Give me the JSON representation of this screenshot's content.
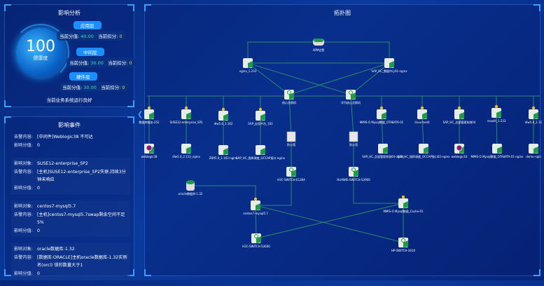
{
  "analysis": {
    "title": "影响分析",
    "health_value": "100",
    "health_label": "健康度",
    "layers": [
      {
        "name": "应用层",
        "score_label": "当前分值:",
        "score": "40.00",
        "deduct_label": "当前扣分:",
        "deduct": "0"
      },
      {
        "name": "中间层",
        "score_label": "当前分值:",
        "score": "30.00",
        "deduct_label": "当前扣分:",
        "deduct": "0"
      },
      {
        "name": "硬件层",
        "score_label": "当前分值:",
        "score": "30.00",
        "deduct_label": "当前扣分:",
        "deduct": "0"
      }
    ],
    "status": "当前业务系统运行良好"
  },
  "events": {
    "title": "影响事件",
    "items": [
      {
        "target_label": "",
        "target": "",
        "content_label": "告警内容:",
        "content": "[中间件]Weblogic38 不可达",
        "score_label": "影响分值:",
        "score": "0"
      },
      {
        "target_label": "影响对象:",
        "target": "SUSE12-enterprise_SP2",
        "content_label": "告警内容:",
        "content": "[主机]SUSE12-enterprise_SP2失联,持续3分钟未响应",
        "score_label": "影响分值:",
        "score": "0"
      },
      {
        "target_label": "影响对象:",
        "target": "centos7-mysql5.7",
        "content_label": "告警内容:",
        "content": "[主机]centos7-mysql5.7swap剩余空间不足5%",
        "score_label": "影响分值:",
        "score": "0"
      },
      {
        "target_label": "影响对象:",
        "target": "oracle数据库-1.32",
        "content_label": "告警内容:",
        "content": "[数据库:ORACLE]主机oracle数据库-1.32实例名(orcl) 锁的数量大于1",
        "score_label": "影响分值:",
        "score": "0"
      }
    ]
  },
  "collapse_icon": "chevron-left-icon",
  "topology": {
    "title": "拓扑图",
    "colors": {
      "link": "#2a8a6a",
      "node_green": "#1f9a4a",
      "warn": "#f0c020",
      "error": "#8a1a7a"
    },
    "nodes": [
      {
        "id": "apm",
        "label": "APM告警",
        "kind": "apm"
      },
      {
        "id": "ng233",
        "label": "nginx_1.233",
        "kind": "server"
      },
      {
        "id": "sap01",
        "label": "SAP_HC_数据中心01-nginx",
        "kind": "server"
      },
      {
        "id": "sw1",
        "label": "核心交换机",
        "kind": "switch"
      },
      {
        "id": "sw2",
        "label": "华为核心交换机",
        "kind": "switch"
      },
      {
        "id": "r1a",
        "label": "数据库服务-252",
        "kind": "server",
        "state": "warn"
      },
      {
        "id": "r1b",
        "label": "SUSE12-enterprise_SP2",
        "kind": "server",
        "state": "warn"
      },
      {
        "id": "r1c",
        "label": "dlw5.0_1.162",
        "kind": "server",
        "state": "warn"
      },
      {
        "id": "r1d",
        "label": "SAP_应用平台_161",
        "kind": "server",
        "state": "warn"
      },
      {
        "id": "r1e",
        "label": "MMIS-O Mysql数据_OTA8ATA-01",
        "kind": "server",
        "state": "warn"
      },
      {
        "id": "r1f",
        "label": "linux-test4",
        "kind": "server",
        "state": "warn"
      },
      {
        "id": "r1g",
        "label": "SAP_HC_总部管理系统04",
        "kind": "server",
        "state": "warn"
      },
      {
        "id": "r1h",
        "label": "nexolit_1.233",
        "kind": "server",
        "state": "warn"
      },
      {
        "id": "r1i",
        "label": "dlw5.0_2.11",
        "kind": "server",
        "state": "warn"
      },
      {
        "id": "r2a",
        "label": "weblogic38",
        "kind": "server",
        "state": "error"
      },
      {
        "id": "r2b",
        "label": "dlw5.0_2.113_nginx",
        "kind": "server"
      },
      {
        "id": "r2c",
        "label": "ZBX5.0_1.162-nginx",
        "kind": "server"
      },
      {
        "id": "r2d",
        "label": "SAP_HC_指挥调度_OCCAP接口-nginx",
        "kind": "server"
      },
      {
        "id": "r2e",
        "label": "SAP_HC_总部管理系统04-nginx",
        "kind": "server"
      },
      {
        "id": "r2f",
        "label": "SAP_HC_指挥调度_OCCAP接口02-nginx",
        "kind": "server"
      },
      {
        "id": "r2g",
        "label": "weblogic16",
        "kind": "server",
        "state": "error"
      },
      {
        "id": "r2h",
        "label": "MMIS-O Mysql数据_OTA8ATA-01-nginx",
        "kind": "server"
      },
      {
        "id": "r2i",
        "label": "demo-ngin",
        "kind": "server"
      },
      {
        "id": "fw1",
        "label": "防火墙",
        "kind": "firewall"
      },
      {
        "id": "fw2",
        "label": "防火墙",
        "kind": "firewall"
      },
      {
        "id": "h3c1",
        "label": "H3C-SWITCH-E126A",
        "kind": "switch"
      },
      {
        "id": "hw",
        "label": "HUAWEI-SWITCH-S3900",
        "kind": "switch"
      },
      {
        "id": "ora",
        "label": "oracle数据库-1.32",
        "kind": "db"
      },
      {
        "id": "cent",
        "label": "centos7-mysql5.7",
        "kind": "server",
        "state": "warn"
      },
      {
        "id": "mmis",
        "label": "MMIS-O Mysql数据_Cache-01",
        "kind": "server",
        "state": "warn"
      },
      {
        "id": "h3c2",
        "label": "H3C-SWITCH-S3600",
        "kind": "switch"
      },
      {
        "id": "hp",
        "label": "HP-SWITCH-2610",
        "kind": "switch"
      }
    ]
  }
}
